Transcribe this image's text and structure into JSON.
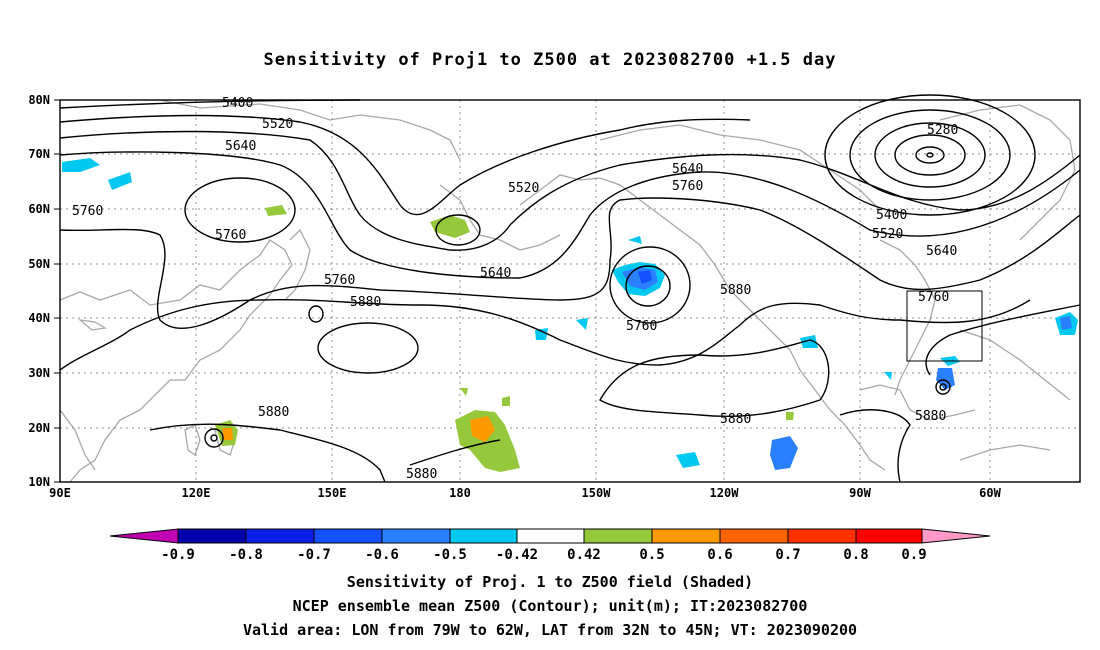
{
  "title": "Sensitivity of Proj1 to Z500 at 2023082700 +1.5 day",
  "map": {
    "lat_labels": [
      "80N",
      "70N",
      "60N",
      "50N",
      "40N",
      "30N",
      "20N",
      "10N"
    ],
    "lon_labels": [
      "90E",
      "120E",
      "150E",
      "180",
      "150W",
      "120W",
      "90W",
      "60W"
    ],
    "contour_labels": [
      "5400",
      "5520",
      "5640",
      "5760",
      "5520",
      "5640",
      "5760",
      "5880",
      "5760",
      "5640",
      "5760",
      "5880",
      "5280",
      "5400",
      "5520",
      "5640",
      "5760",
      "5880",
      "5880",
      "5880",
      "5880"
    ],
    "box_color": "#000000"
  },
  "colorbar": {
    "tick_labels": [
      "-0.9",
      "-0.8",
      "-0.7",
      "-0.6",
      "-0.5",
      "-0.42",
      "0.42",
      "0.5",
      "0.6",
      "0.7",
      "0.8",
      "0.9"
    ],
    "colors": [
      "#c000b0",
      "#0000a8",
      "#0a1ee6",
      "#1450ff",
      "#2b80ff",
      "#00c8f0",
      "#ffffff",
      "#96c83c",
      "#ff9900",
      "#ff6400",
      "#ff3200",
      "#ff0000",
      "#ff99c8"
    ]
  },
  "captions": {
    "line1": "Sensitivity of Proj. 1 to Z500 field (Shaded)",
    "line2": "NCEP ensemble mean Z500 (Contour); unit(m); IT:2023082700",
    "line3": "Valid area: LON from 79W to 62W, LAT from 32N to 45N; VT: 2023090200"
  }
}
